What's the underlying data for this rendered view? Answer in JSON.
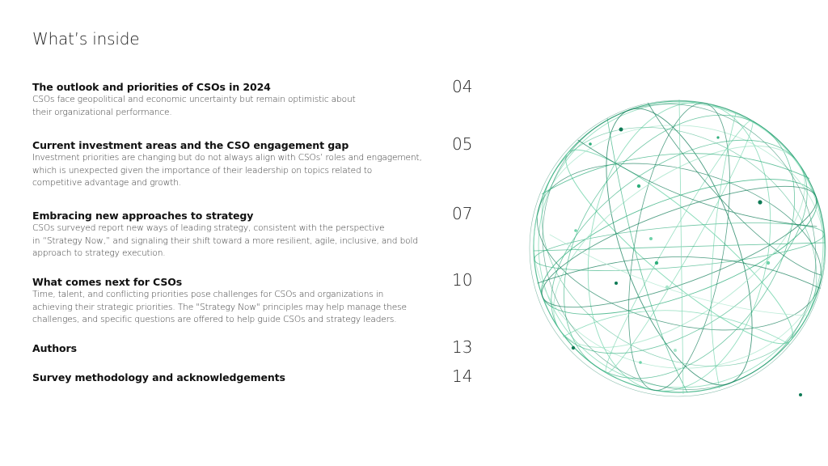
{
  "page": {
    "title": "What’s inside"
  },
  "toc": [
    {
      "title": "The outlook and priorities of CSOs in 2024",
      "description": "CSOs face geopolitical and economic uncertainty but remain optimistic about\ntheir organizational performance.",
      "page": "04"
    },
    {
      "title": "Current investment areas and the CSO engagement gap",
      "description": "Investment priorities are changing but do not always align with CSOs’ roles and engagement,\nwhich is unexpected given the importance of their leadership on topics related to\ncompetitive advantage and growth.",
      "page": "05"
    },
    {
      "title": "Embracing new approaches to strategy",
      "description": "CSOs surveyed report new ways of leading strategy, consistent with the perspective\nin “Strategy Now,” and signaling their shift toward a more resilient, agile, inclusive, and bold\napproach to strategy execution.",
      "page": "07"
    },
    {
      "title": "What comes next for CSOs",
      "description": "Time, talent, and conflicting priorities pose challenges for CSOs and organizations in\nachieving their strategic priorities. The \"Strategy Now\" principles may help manage these\nchallenges, and specific questions are offered to help guide CSOs and strategy leaders.",
      "page": "10"
    },
    {
      "title": "Authors",
      "description": "",
      "page": "13"
    },
    {
      "title": "Survey methodology and acknowledgements",
      "description": "",
      "page": "14"
    }
  ],
  "decoration": {
    "image": "wireframe-globe",
    "colors": [
      "#0e7a55",
      "#2fae7c",
      "#6fd3aa",
      "#a9e6cc"
    ]
  }
}
